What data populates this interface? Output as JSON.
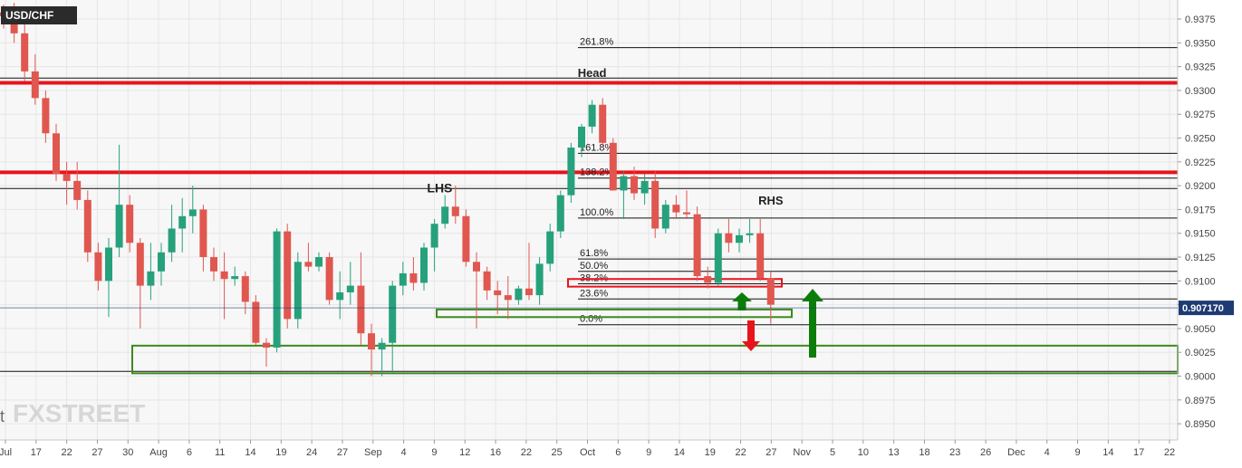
{
  "symbol": "USD/CHF",
  "watermark": "FXSTREET",
  "watermark_edge_char": "t",
  "colors": {
    "up": "#26a17b",
    "down": "#e0574f",
    "resistance": "#e8141b",
    "zone_green": "#3b8a1c",
    "arrow_up": "#0b7d0b",
    "arrow_down": "#e8141b",
    "price_tag": "#1f3b73",
    "grid": "#e6e6e6"
  },
  "chart_data": {
    "type": "candlestick",
    "title": "USD/CHF",
    "ylim": [
      0.8933,
      0.9395
    ],
    "y_ticks": [
      "0.9375",
      "0.9350",
      "0.9325",
      "0.9300",
      "0.9275",
      "0.9250",
      "0.9225",
      "0.9200",
      "0.9175",
      "0.9150",
      "0.9125",
      "0.9100",
      "0.9075",
      "0.9050",
      "0.9025",
      "0.9000",
      "0.8975",
      "0.8950"
    ],
    "x_ticks": [
      "Jul",
      "17",
      "22",
      "27",
      "30",
      "Aug",
      "6",
      "11",
      "14",
      "19",
      "24",
      "27",
      "Sep",
      "4",
      "9",
      "12",
      "16",
      "22",
      "25",
      "Oct",
      "6",
      "9",
      "14",
      "19",
      "22",
      "27",
      "Nov",
      "5",
      "10",
      "13",
      "18",
      "23",
      "26",
      "Dec",
      "4",
      "9",
      "14",
      "17",
      "22"
    ],
    "current_price": "0.907170",
    "candles": [
      {
        "o": 0.9382,
        "h": 0.939,
        "l": 0.9365,
        "c": 0.9378
      },
      {
        "o": 0.9378,
        "h": 0.9392,
        "l": 0.935,
        "c": 0.936
      },
      {
        "o": 0.936,
        "h": 0.937,
        "l": 0.931,
        "c": 0.932
      },
      {
        "o": 0.932,
        "h": 0.9338,
        "l": 0.9285,
        "c": 0.9292
      },
      {
        "o": 0.9292,
        "h": 0.93,
        "l": 0.9245,
        "c": 0.9255
      },
      {
        "o": 0.9255,
        "h": 0.9265,
        "l": 0.9205,
        "c": 0.9212
      },
      {
        "o": 0.9212,
        "h": 0.9225,
        "l": 0.918,
        "c": 0.9205
      },
      {
        "o": 0.9205,
        "h": 0.9225,
        "l": 0.9175,
        "c": 0.9185
      },
      {
        "o": 0.9185,
        "h": 0.9195,
        "l": 0.912,
        "c": 0.913
      },
      {
        "o": 0.913,
        "h": 0.914,
        "l": 0.909,
        "c": 0.91
      },
      {
        "o": 0.91,
        "h": 0.9145,
        "l": 0.9062,
        "c": 0.9135
      },
      {
        "o": 0.9135,
        "h": 0.9243,
        "l": 0.9125,
        "c": 0.918
      },
      {
        "o": 0.918,
        "h": 0.919,
        "l": 0.913,
        "c": 0.914
      },
      {
        "o": 0.914,
        "h": 0.9145,
        "l": 0.905,
        "c": 0.9095
      },
      {
        "o": 0.9095,
        "h": 0.914,
        "l": 0.908,
        "c": 0.911
      },
      {
        "o": 0.911,
        "h": 0.914,
        "l": 0.9095,
        "c": 0.913
      },
      {
        "o": 0.913,
        "h": 0.918,
        "l": 0.912,
        "c": 0.9155
      },
      {
        "o": 0.9155,
        "h": 0.9187,
        "l": 0.913,
        "c": 0.9168
      },
      {
        "o": 0.9168,
        "h": 0.92,
        "l": 0.915,
        "c": 0.9175
      },
      {
        "o": 0.9175,
        "h": 0.918,
        "l": 0.911,
        "c": 0.9125
      },
      {
        "o": 0.9125,
        "h": 0.9135,
        "l": 0.91,
        "c": 0.911
      },
      {
        "o": 0.911,
        "h": 0.913,
        "l": 0.906,
        "c": 0.9102
      },
      {
        "o": 0.9102,
        "h": 0.9115,
        "l": 0.9095,
        "c": 0.9105
      },
      {
        "o": 0.9105,
        "h": 0.911,
        "l": 0.9065,
        "c": 0.9078
      },
      {
        "o": 0.9078,
        "h": 0.9085,
        "l": 0.9033,
        "c": 0.9035
      },
      {
        "o": 0.9035,
        "h": 0.904,
        "l": 0.901,
        "c": 0.903
      },
      {
        "o": 0.903,
        "h": 0.9155,
        "l": 0.9025,
        "c": 0.9152
      },
      {
        "o": 0.9152,
        "h": 0.916,
        "l": 0.905,
        "c": 0.906
      },
      {
        "o": 0.906,
        "h": 0.913,
        "l": 0.905,
        "c": 0.912
      },
      {
        "o": 0.912,
        "h": 0.914,
        "l": 0.911,
        "c": 0.9115
      },
      {
        "o": 0.9115,
        "h": 0.913,
        "l": 0.911,
        "c": 0.9125
      },
      {
        "o": 0.9125,
        "h": 0.913,
        "l": 0.9075,
        "c": 0.908
      },
      {
        "o": 0.908,
        "h": 0.911,
        "l": 0.906,
        "c": 0.9088
      },
      {
        "o": 0.9088,
        "h": 0.912,
        "l": 0.9075,
        "c": 0.9095
      },
      {
        "o": 0.9095,
        "h": 0.913,
        "l": 0.9033,
        "c": 0.9045
      },
      {
        "o": 0.9045,
        "h": 0.9055,
        "l": 0.9,
        "c": 0.9028
      },
      {
        "o": 0.9028,
        "h": 0.904,
        "l": 0.9,
        "c": 0.9035
      },
      {
        "o": 0.9035,
        "h": 0.91,
        "l": 0.9003,
        "c": 0.9095
      },
      {
        "o": 0.9095,
        "h": 0.912,
        "l": 0.9085,
        "c": 0.9108
      },
      {
        "o": 0.9108,
        "h": 0.9125,
        "l": 0.909,
        "c": 0.9098
      },
      {
        "o": 0.9098,
        "h": 0.914,
        "l": 0.909,
        "c": 0.9135
      },
      {
        "o": 0.9135,
        "h": 0.9165,
        "l": 0.911,
        "c": 0.916
      },
      {
        "o": 0.916,
        "h": 0.919,
        "l": 0.9155,
        "c": 0.9178
      },
      {
        "o": 0.9178,
        "h": 0.92,
        "l": 0.916,
        "c": 0.9168
      },
      {
        "o": 0.9168,
        "h": 0.9175,
        "l": 0.9115,
        "c": 0.912
      },
      {
        "o": 0.912,
        "h": 0.913,
        "l": 0.905,
        "c": 0.911
      },
      {
        "o": 0.911,
        "h": 0.9115,
        "l": 0.908,
        "c": 0.909
      },
      {
        "o": 0.909,
        "h": 0.91,
        "l": 0.9065,
        "c": 0.9085
      },
      {
        "o": 0.9085,
        "h": 0.9105,
        "l": 0.906,
        "c": 0.908
      },
      {
        "o": 0.908,
        "h": 0.9095,
        "l": 0.9075,
        "c": 0.9092
      },
      {
        "o": 0.9092,
        "h": 0.914,
        "l": 0.908,
        "c": 0.9085
      },
      {
        "o": 0.9085,
        "h": 0.9125,
        "l": 0.9075,
        "c": 0.9118
      },
      {
        "o": 0.9118,
        "h": 0.916,
        "l": 0.911,
        "c": 0.9152
      },
      {
        "o": 0.9152,
        "h": 0.9195,
        "l": 0.9145,
        "c": 0.919
      },
      {
        "o": 0.919,
        "h": 0.9245,
        "l": 0.9182,
        "c": 0.924
      },
      {
        "o": 0.924,
        "h": 0.9265,
        "l": 0.923,
        "c": 0.9262
      },
      {
        "o": 0.9262,
        "h": 0.929,
        "l": 0.9255,
        "c": 0.9285
      },
      {
        "o": 0.9285,
        "h": 0.9292,
        "l": 0.924,
        "c": 0.9245
      },
      {
        "o": 0.9245,
        "h": 0.925,
        "l": 0.9195,
        "c": 0.9195
      },
      {
        "o": 0.9195,
        "h": 0.9215,
        "l": 0.9165,
        "c": 0.921
      },
      {
        "o": 0.921,
        "h": 0.922,
        "l": 0.9185,
        "c": 0.9192
      },
      {
        "o": 0.9192,
        "h": 0.9212,
        "l": 0.918,
        "c": 0.9205
      },
      {
        "o": 0.9205,
        "h": 0.9215,
        "l": 0.9145,
        "c": 0.9155
      },
      {
        "o": 0.9155,
        "h": 0.9185,
        "l": 0.915,
        "c": 0.918
      },
      {
        "o": 0.918,
        "h": 0.919,
        "l": 0.9165,
        "c": 0.9172
      },
      {
        "o": 0.9172,
        "h": 0.9195,
        "l": 0.9165,
        "c": 0.917
      },
      {
        "o": 0.917,
        "h": 0.9178,
        "l": 0.91,
        "c": 0.9105
      },
      {
        "o": 0.9105,
        "h": 0.9115,
        "l": 0.9092,
        "c": 0.9098
      },
      {
        "o": 0.9098,
        "h": 0.9155,
        "l": 0.9095,
        "c": 0.915
      },
      {
        "o": 0.915,
        "h": 0.9165,
        "l": 0.913,
        "c": 0.914
      },
      {
        "o": 0.914,
        "h": 0.9155,
        "l": 0.913,
        "c": 0.9148
      },
      {
        "o": 0.9148,
        "h": 0.9165,
        "l": 0.914,
        "c": 0.915
      },
      {
        "o": 0.915,
        "h": 0.9165,
        "l": 0.91,
        "c": 0.9103
      },
      {
        "o": 0.9103,
        "h": 0.911,
        "l": 0.9055,
        "c": 0.9075
      }
    ],
    "fib_levels": [
      {
        "label": "261.8%",
        "value": 0.9345
      },
      {
        "label": "161.8%",
        "value": 0.9234
      },
      {
        "label": "138.2%",
        "value": 0.9208
      },
      {
        "label": "100.0%",
        "value": 0.9166
      },
      {
        "label": "61.8%",
        "value": 0.9123
      },
      {
        "label": "50.0%",
        "value": 0.911
      },
      {
        "label": "38.2%",
        "value": 0.9097
      },
      {
        "label": "23.6%",
        "value": 0.9081
      },
      {
        "label": "0.0%",
        "value": 0.9054
      }
    ],
    "black_lines": [
      0.9313,
      0.9197,
      0.9005
    ],
    "red_lines": [
      0.9308,
      0.9214
    ],
    "pattern_labels": [
      {
        "text": "Head",
        "candle": 56,
        "price": 0.9314
      },
      {
        "text": "LHS",
        "candle": 41.5,
        "price": 0.9193
      },
      {
        "text": "RHS",
        "candle": 73,
        "price": 0.918
      }
    ]
  }
}
